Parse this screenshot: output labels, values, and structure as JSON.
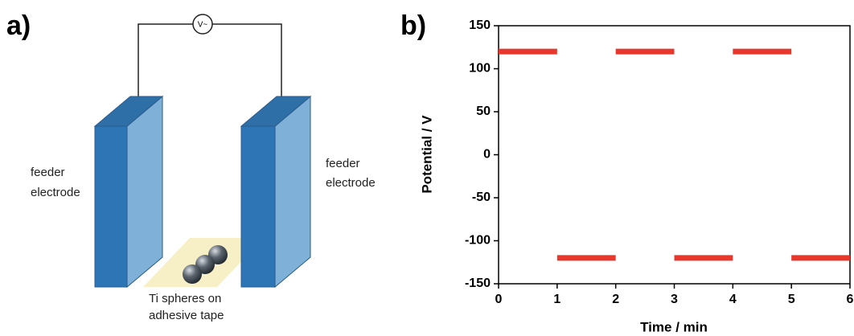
{
  "diagram": {
    "panel_label": "a)",
    "meter_label": "V~",
    "left_label": [
      "feeder",
      "electrode"
    ],
    "right_label": [
      "feeder",
      "electrode"
    ],
    "sample_label": [
      "Ti spheres on",
      "adhesive tape"
    ]
  },
  "chart_data": {
    "type": "line",
    "panel_label": "b)",
    "x_label": "Time / min",
    "y_label": "Potential / V",
    "x": [
      0,
      1,
      1,
      1,
      2,
      2,
      2,
      3,
      3,
      3,
      4,
      4,
      4,
      5,
      5,
      5,
      6
    ],
    "series": [
      {
        "color": "#e8382d",
        "values": [
          120,
          120,
          null,
          -120,
          -120,
          null,
          120,
          120,
          null,
          -120,
          -120,
          null,
          120,
          120,
          null,
          -120,
          -120
        ]
      }
    ],
    "xlim": [
      0,
      6
    ],
    "xticks": [
      0,
      1,
      2,
      3,
      4,
      5,
      6
    ],
    "ylim": [
      -150,
      150
    ],
    "yticks": [
      -150,
      -100,
      -50,
      0,
      50,
      100,
      150
    ]
  }
}
